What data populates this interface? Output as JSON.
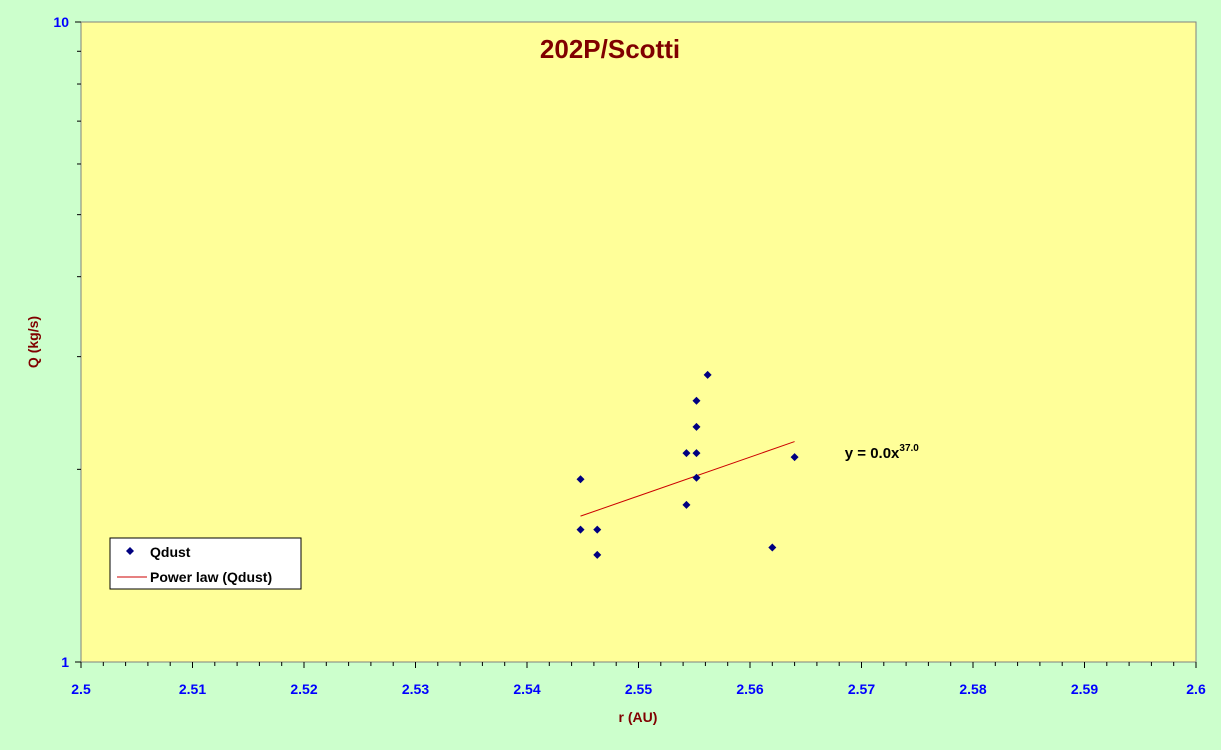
{
  "chart_data": {
    "type": "scatter",
    "title": "202P/Scotti",
    "xlabel": "r (AU)",
    "ylabel": "Q (kg/s)",
    "xlim": [
      2.5,
      2.6
    ],
    "ylim": [
      1,
      10
    ],
    "y_scale": "log",
    "x_ticks": [
      "2.5",
      "2.51",
      "2.52",
      "2.53",
      "2.54",
      "2.55",
      "2.56",
      "2.57",
      "2.58",
      "2.59",
      "2.6"
    ],
    "y_ticks": [
      "1",
      "10"
    ],
    "grid": false,
    "legend_position": "bottom-left",
    "series": [
      {
        "name": "Qdust",
        "marker": "diamond",
        "color": "#000080",
        "points": [
          {
            "x": 2.5448,
            "y": 1.93
          },
          {
            "x": 2.5448,
            "y": 1.61
          },
          {
            "x": 2.5463,
            "y": 1.61
          },
          {
            "x": 2.5463,
            "y": 1.47
          },
          {
            "x": 2.5543,
            "y": 2.12
          },
          {
            "x": 2.5543,
            "y": 1.76
          },
          {
            "x": 2.5552,
            "y": 2.12
          },
          {
            "x": 2.5552,
            "y": 2.33
          },
          {
            "x": 2.5552,
            "y": 2.56
          },
          {
            "x": 2.5552,
            "y": 1.94
          },
          {
            "x": 2.5562,
            "y": 2.81
          },
          {
            "x": 2.562,
            "y": 1.51
          },
          {
            "x": 2.564,
            "y": 2.09
          }
        ]
      },
      {
        "name": "Power law (Qdust)",
        "type": "line",
        "color": "#cc0000",
        "points": [
          {
            "x": 2.5448,
            "y": 1.69
          },
          {
            "x": 2.564,
            "y": 2.21
          }
        ]
      }
    ],
    "annotation": {
      "text": "y = 0.0x",
      "superscript": "37.0",
      "x": 2.5685,
      "y": 2.12
    }
  }
}
